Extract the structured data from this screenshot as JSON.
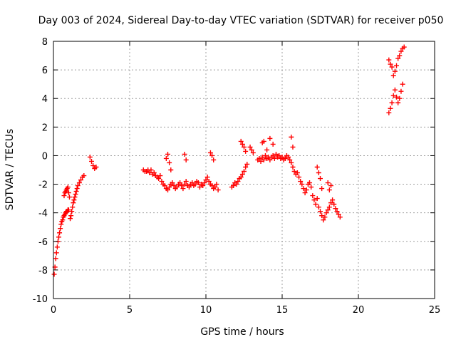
{
  "chart_data": {
    "type": "scatter",
    "title": "Day 003 of 2024, Sidereal Day-to-day VTEC variation (SDTVAR) for receiver p050",
    "xlabel": "GPS time / hours",
    "ylabel": "SDTVAR / TECUs",
    "xlim": [
      0,
      25
    ],
    "ylim": [
      -10,
      8
    ],
    "xticks": [
      0,
      5,
      10,
      15,
      20,
      25
    ],
    "yticks": [
      -10,
      -8,
      -6,
      -4,
      -2,
      0,
      2,
      4,
      6,
      8
    ],
    "grid": true,
    "legend": "none",
    "marker": "+",
    "color": "#ff0000",
    "series": [
      {
        "x": [
          0.05,
          0.1,
          0.15,
          0.2,
          0.25,
          0.3,
          0.35,
          0.4,
          0.45,
          0.5,
          0.55,
          0.6,
          0.65,
          0.7,
          0.75,
          0.8,
          0.85,
          0.9,
          0.95,
          1.0,
          0.7,
          0.75,
          0.8,
          0.85,
          0.9,
          0.95,
          1.0,
          1.05,
          1.1,
          1.15,
          1.2,
          1.25,
          1.3,
          1.35,
          1.4,
          1.45,
          1.5,
          1.55,
          1.6,
          1.7,
          1.8,
          1.9,
          2.0,
          2.4,
          2.5,
          2.6,
          2.7,
          2.8,
          5.9,
          6.0,
          6.1,
          6.2,
          6.3,
          6.4,
          6.5,
          6.6,
          6.7,
          6.8,
          6.9,
          7.0,
          7.1,
          7.2,
          7.3,
          7.4,
          7.5,
          7.6,
          7.7,
          7.8,
          7.9,
          8.0,
          8.1,
          8.2,
          8.3,
          8.4,
          8.5,
          8.6,
          8.7,
          8.8,
          8.9,
          9.0,
          9.1,
          9.2,
          9.3,
          9.4,
          9.5,
          9.6,
          9.7,
          9.8,
          9.9,
          10.0,
          10.1,
          10.2,
          10.3,
          10.4,
          10.5,
          10.6,
          10.7,
          10.8,
          7.4,
          7.5,
          7.6,
          7.7,
          8.6,
          8.7,
          10.3,
          10.4,
          10.5,
          11.7,
          11.8,
          11.9,
          12.0,
          12.1,
          12.2,
          12.3,
          12.4,
          12.5,
          12.6,
          12.7,
          12.3,
          12.4,
          12.5,
          12.6,
          12.9,
          13.0,
          13.1,
          13.4,
          13.5,
          13.6,
          13.7,
          13.8,
          13.9,
          14.0,
          14.1,
          14.2,
          14.3,
          14.4,
          14.5,
          14.6,
          14.7,
          14.8,
          14.9,
          15.0,
          15.1,
          15.2,
          15.3,
          15.4,
          15.5,
          15.6,
          15.7,
          15.8,
          15.9,
          16.0,
          16.1,
          13.7,
          13.8,
          14.0,
          14.2,
          14.4,
          15.6,
          15.7,
          16.2,
          16.3,
          16.4,
          16.5,
          16.6,
          16.7,
          16.8,
          16.9,
          17.0,
          17.1,
          17.2,
          17.3,
          17.4,
          17.5,
          17.6,
          17.7,
          17.8,
          17.9,
          18.0,
          18.1,
          18.2,
          18.3,
          18.4,
          18.5,
          18.6,
          18.7,
          18.8,
          17.3,
          17.4,
          17.5,
          17.6,
          18.0,
          18.1,
          18.2,
          22.0,
          22.1,
          22.2,
          22.3,
          22.4,
          22.5,
          22.6,
          22.7,
          22.8,
          22.9,
          23.0,
          22.0,
          22.1,
          22.2,
          22.3,
          22.4,
          22.5,
          22.6,
          22.7,
          22.8,
          22.9
        ],
        "y": [
          -8.3,
          -7.8,
          -7.2,
          -6.8,
          -6.4,
          -6.0,
          -5.7,
          -5.4,
          -5.1,
          -4.8,
          -4.6,
          -4.5,
          -4.3,
          -4.2,
          -4.1,
          -4.0,
          -3.9,
          -3.9,
          -3.8,
          -3.8,
          -2.8,
          -2.6,
          -2.5,
          -2.4,
          -2.3,
          -2.2,
          -2.6,
          -2.9,
          -4.4,
          -4.2,
          -3.9,
          -3.6,
          -3.3,
          -3.1,
          -2.9,
          -2.7,
          -2.5,
          -2.3,
          -2.1,
          -1.9,
          -1.7,
          -1.5,
          -1.4,
          -0.1,
          -0.4,
          -0.7,
          -0.9,
          -0.8,
          -1.0,
          -1.1,
          -1.1,
          -1.0,
          -1.2,
          -1.0,
          -1.3,
          -1.2,
          -1.4,
          -1.5,
          -1.6,
          -1.4,
          -1.8,
          -2.0,
          -2.1,
          -2.3,
          -2.4,
          -2.2,
          -2.0,
          -1.9,
          -2.1,
          -2.3,
          -2.2,
          -2.0,
          -1.9,
          -2.1,
          -2.3,
          -2.0,
          -1.8,
          -2.1,
          -2.2,
          -2.0,
          -1.9,
          -2.1,
          -2.0,
          -1.8,
          -1.9,
          -2.2,
          -2.0,
          -2.1,
          -1.9,
          -1.7,
          -1.5,
          -1.8,
          -2.0,
          -2.1,
          -2.3,
          -2.2,
          -2.0,
          -2.4,
          -0.2,
          0.1,
          -0.5,
          -1.0,
          0.1,
          -0.3,
          0.2,
          0.0,
          -0.3,
          -2.2,
          -2.1,
          -1.9,
          -2.0,
          -1.8,
          -1.6,
          -1.5,
          -1.3,
          -1.1,
          -0.8,
          -0.6,
          1.0,
          0.8,
          0.6,
          0.3,
          0.6,
          0.4,
          0.2,
          -0.3,
          -0.2,
          -0.4,
          -0.1,
          -0.3,
          0.0,
          -0.2,
          -0.1,
          -0.3,
          -0.1,
          0.0,
          -0.2,
          0.1,
          -0.1,
          0.0,
          -0.2,
          -0.1,
          -0.3,
          -0.2,
          0.0,
          -0.1,
          -0.3,
          -0.5,
          -0.8,
          -1.1,
          -1.3,
          -1.2,
          -1.5,
          0.9,
          1.0,
          0.4,
          1.2,
          0.8,
          1.3,
          0.6,
          -1.8,
          -2.0,
          -2.3,
          -2.6,
          -2.4,
          -2.0,
          -1.9,
          -2.2,
          -2.8,
          -3.1,
          -3.4,
          -3.0,
          -3.6,
          -3.9,
          -4.2,
          -4.5,
          -4.3,
          -4.0,
          -3.8,
          -3.6,
          -3.3,
          -3.1,
          -3.4,
          -3.7,
          -3.9,
          -4.1,
          -4.3,
          -0.8,
          -1.2,
          -1.6,
          -2.3,
          -1.9,
          -2.4,
          -2.1,
          6.7,
          6.4,
          6.2,
          5.6,
          5.9,
          6.3,
          6.8,
          7.0,
          7.3,
          7.5,
          7.6,
          3.0,
          3.3,
          3.7,
          4.2,
          4.6,
          4.1,
          3.7,
          4.0,
          4.5,
          5.0
        ]
      }
    ]
  }
}
